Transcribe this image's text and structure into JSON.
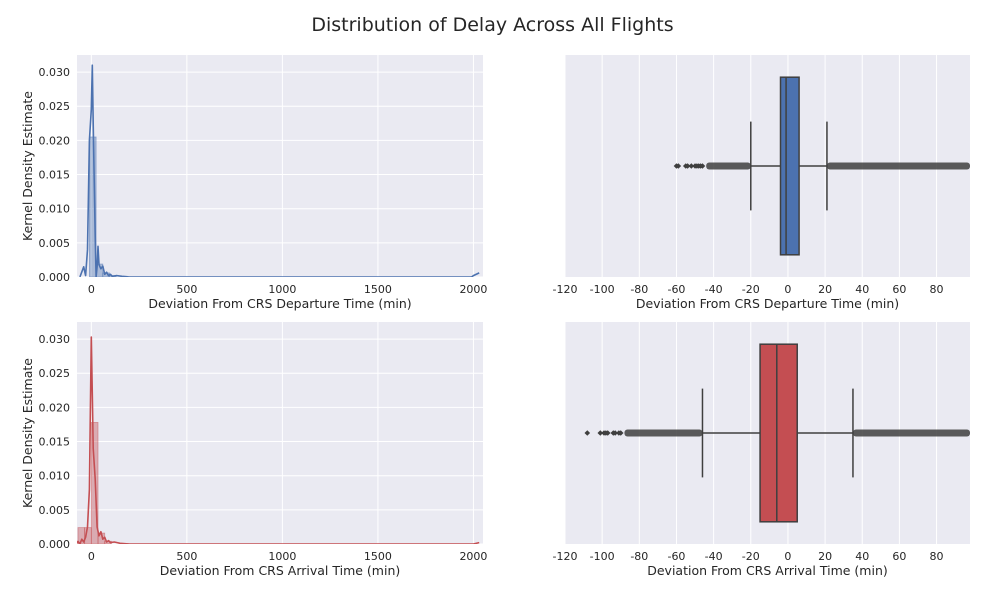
{
  "figure": {
    "title": "Distribution of Delay Across All Flights"
  },
  "colors": {
    "background": "#EAEAF2",
    "grid": "#FFFFFF",
    "departure": "#4C72B0",
    "arrival": "#C44E52",
    "box_edge": "#3F3F3F",
    "text": "#262626"
  },
  "chart_data": [
    {
      "type": "histogram+kde",
      "xlabel": "Deviation From CRS Departure Time (min)",
      "ylabel": "Kernel Density Estimate",
      "xlim": [
        -75,
        2050
      ],
      "ylim": [
        0,
        0.0325
      ],
      "xticks": [
        0,
        500,
        1000,
        1500,
        2000
      ],
      "xtick_labels": [
        "0",
        "500",
        "1000",
        "1500",
        "2000"
      ],
      "yticks": [
        0.0,
        0.005,
        0.01,
        0.015,
        0.02,
        0.025,
        0.03
      ],
      "ytick_labels": [
        "0.000",
        "0.005",
        "0.010",
        "0.015",
        "0.020",
        "0.025",
        "0.030"
      ],
      "color": "#4C72B0",
      "bins": [
        {
          "x0": -10,
          "x1": 25,
          "density": 0.0205
        },
        {
          "x0": 25,
          "x1": 60,
          "density": 0.0019
        },
        {
          "x0": 60,
          "x1": 95,
          "density": 0.0006
        },
        {
          "x0": 95,
          "x1": 130,
          "density": 0.0002
        }
      ],
      "kde": {
        "x": [
          -60,
          -40,
          -30,
          -20,
          -10,
          0,
          5,
          10,
          20,
          25,
          30,
          35,
          40,
          50,
          60,
          70,
          80,
          90,
          100,
          110,
          130,
          160,
          200,
          300,
          500,
          1000,
          1500,
          1900,
          1990,
          2000,
          2030
        ],
        "y": [
          0.0,
          0.0015,
          0.0002,
          0.004,
          0.02,
          0.0245,
          0.031,
          0.0225,
          0.006,
          0.0,
          0.0015,
          0.0045,
          0.0018,
          0.0012,
          0.0016,
          0.0004,
          0.0007,
          0.0002,
          0.0004,
          0.0001,
          0.0002,
          0.0001,
          0.0,
          0.0,
          0.0,
          0.0,
          0.0,
          0.0,
          0.0,
          0.0002,
          0.0006
        ]
      }
    },
    {
      "type": "boxplot",
      "xlabel": "Deviation From CRS Departure Time (min)",
      "xlim": [
        -120,
        98
      ],
      "xticks": [
        -120,
        -100,
        -80,
        -60,
        -40,
        -20,
        0,
        20,
        40,
        60,
        80
      ],
      "xtick_labels": [
        "-120",
        "-100",
        "-80",
        "-60",
        "-40",
        "-20",
        "0",
        "20",
        "40",
        "60",
        "80"
      ],
      "color": "#4C72B0",
      "q1": -4,
      "median": -1,
      "q3": 6,
      "whisker_low": -20,
      "whisker_high": 21,
      "outliers_low_range": [
        -44,
        -20
      ],
      "outliers_low_points": [
        -60,
        -59,
        -55,
        -54,
        -52,
        -50,
        -49,
        -48,
        -47,
        -46
      ],
      "outliers_high_range": [
        21,
        98
      ]
    },
    {
      "type": "histogram+kde",
      "xlabel": "Deviation From CRS Arrival Time (min)",
      "ylabel": "Kernel Density Estimate",
      "xlim": [
        -75,
        2050
      ],
      "ylim": [
        0,
        0.0325
      ],
      "xticks": [
        0,
        500,
        1000,
        1500,
        2000
      ],
      "xtick_labels": [
        "0",
        "500",
        "1000",
        "1500",
        "2000"
      ],
      "yticks": [
        0.0,
        0.005,
        0.01,
        0.015,
        0.02,
        0.025,
        0.03
      ],
      "ytick_labels": [
        "0.000",
        "0.005",
        "0.010",
        "0.015",
        "0.020",
        "0.025",
        "0.030"
      ],
      "color": "#C44E52",
      "bins": [
        {
          "x0": -70,
          "x1": -35,
          "density": 0.0024
        },
        {
          "x0": -35,
          "x1": 0,
          "density": 0.0024
        },
        {
          "x0": 0,
          "x1": 35,
          "density": 0.0178
        },
        {
          "x0": 35,
          "x1": 70,
          "density": 0.0016
        },
        {
          "x0": 70,
          "x1": 105,
          "density": 0.0004
        }
      ],
      "kde": {
        "x": [
          -80,
          -70,
          -60,
          -50,
          -40,
          -30,
          -20,
          -10,
          -5,
          0,
          5,
          10,
          20,
          30,
          40,
          50,
          60,
          70,
          80,
          90,
          100,
          120,
          150,
          200,
          500,
          1000,
          1500,
          2000,
          2030
        ],
        "y": [
          0.0,
          0.0004,
          0.0,
          0.0007,
          0.0003,
          0.001,
          0.0025,
          0.008,
          0.02,
          0.0303,
          0.022,
          0.014,
          0.0095,
          0.0025,
          0.0012,
          0.0018,
          0.0007,
          0.001,
          0.0003,
          0.0005,
          0.0002,
          0.0003,
          0.0001,
          0.0,
          0.0,
          0.0,
          0.0,
          0.0,
          0.0002
        ]
      }
    },
    {
      "type": "boxplot",
      "xlabel": "Deviation From CRS Arrival Time (min)",
      "xlim": [
        -120,
        98
      ],
      "xticks": [
        -120,
        -100,
        -80,
        -60,
        -40,
        -20,
        0,
        20,
        40,
        60,
        80
      ],
      "xtick_labels": [
        "-120",
        "-100",
        "-80",
        "-60",
        "-40",
        "-20",
        "0",
        "20",
        "40",
        "60",
        "80"
      ],
      "color": "#C44E52",
      "q1": -15,
      "median": -6,
      "q3": 5,
      "whisker_low": -46,
      "whisker_high": 35,
      "outliers_low_range": [
        -88,
        -46
      ],
      "outliers_low_points": [
        -108,
        -101,
        -99,
        -98,
        -97,
        -94,
        -93,
        -91,
        -90
      ],
      "outliers_high_range": [
        35,
        98
      ]
    }
  ]
}
